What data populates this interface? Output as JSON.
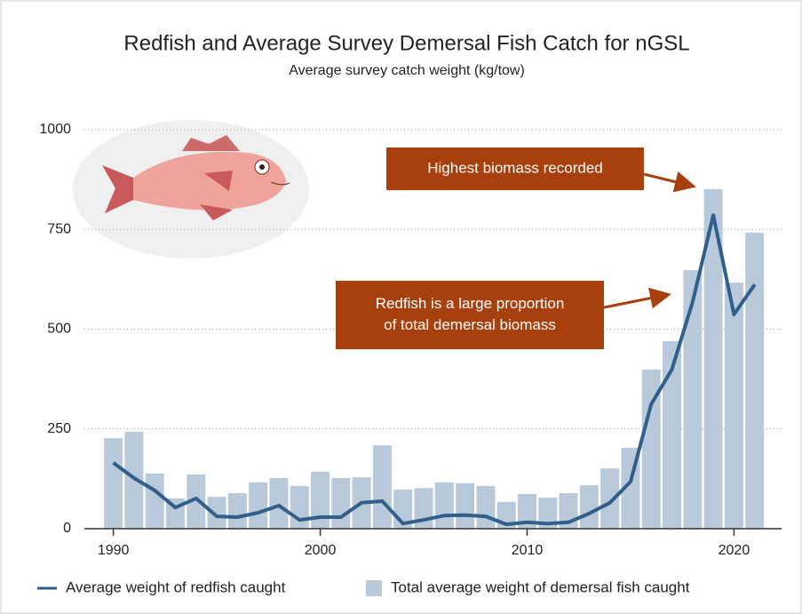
{
  "chart_data": {
    "type": "bar_line",
    "title": "Redfish and Average Survey Demersal Fish Catch for nGSL",
    "subtitle": "Average survey catch weight (kg/tow)",
    "x": [
      1990,
      1991,
      1992,
      1993,
      1994,
      1995,
      1996,
      1997,
      1998,
      1999,
      2000,
      2001,
      2002,
      2003,
      2004,
      2005,
      2006,
      2007,
      2008,
      2009,
      2010,
      2011,
      2012,
      2013,
      2014,
      2015,
      2016,
      2017,
      2018,
      2019,
      2020,
      2021
    ],
    "series": [
      {
        "name": "Total average weight of demersal fish caught",
        "kind": "bar",
        "color": "#b8c9d9",
        "values": [
          227,
          243,
          138,
          76,
          136,
          80,
          89,
          116,
          127,
          107,
          143,
          127,
          129,
          209,
          98,
          102,
          116,
          114,
          107,
          67,
          87,
          78,
          89,
          109,
          151,
          203,
          399,
          470,
          648,
          851,
          617,
          742
        ]
      },
      {
        "name": "Average weight of redfish caught",
        "kind": "line",
        "color": "#2f5f8a",
        "values": [
          165,
          127,
          96,
          53,
          76,
          31,
          29,
          40,
          58,
          22,
          29,
          29,
          65,
          69,
          13,
          22,
          33,
          34,
          31,
          11,
          16,
          13,
          16,
          38,
          65,
          118,
          312,
          399,
          568,
          786,
          537,
          612
        ]
      }
    ],
    "xlim": [
      1988.6,
      2022.3
    ],
    "xticks": [
      1990,
      2000,
      2010,
      2020
    ],
    "ylim": [
      0,
      1000
    ],
    "yticks": [
      0,
      250,
      500,
      750,
      1000
    ],
    "grid": true,
    "annotations": [
      {
        "lines": [
          "Highest biomass recorded"
        ]
      },
      {
        "lines": [
          "Redfish is a large proportion",
          "of total demersal biomass"
        ]
      }
    ]
  }
}
